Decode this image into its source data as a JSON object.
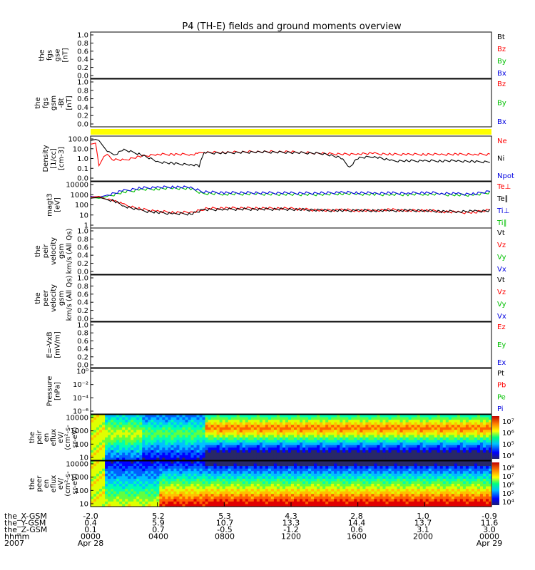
{
  "title": "P4 (TH-E) fields and ground moments overview",
  "colors": {
    "black": "#000000",
    "red": "#ff0000",
    "green": "#00c000",
    "blue": "#0000e0",
    "yellow": "#ffff00"
  },
  "chart_data": [
    {
      "id": "fgs-gse",
      "type": "line",
      "ylabel": [
        "the",
        "fgs",
        "gse",
        "[nT]"
      ],
      "yticks": [
        "1.0",
        "0.8",
        "0.6",
        "0.4",
        "0.2",
        "0.0"
      ],
      "legend": [
        {
          "label": "Bt",
          "color": "#000000"
        },
        {
          "label": "Bz",
          "color": "#ff0000"
        },
        {
          "label": "By",
          "color": "#00c000"
        },
        {
          "label": "Bx",
          "color": "#0000e0"
        }
      ],
      "series": []
    },
    {
      "id": "fgs-gsm",
      "type": "line",
      "ylabel": [
        "the",
        "fgs",
        "gsm",
        "-Bt",
        "[nT]"
      ],
      "yticks": [
        "1.0",
        "0.8",
        "0.6",
        "0.4",
        "0.2",
        "0.0"
      ],
      "legend": [
        {
          "label": "Bz",
          "color": "#ff0000"
        },
        {
          "label": "By",
          "color": "#00c000"
        },
        {
          "label": "Bx",
          "color": "#0000e0"
        }
      ],
      "series": []
    },
    {
      "id": "flag-bar",
      "type": "bar",
      "color": "#ffff00"
    },
    {
      "id": "density",
      "type": "line",
      "yscale": "log",
      "ylabel": [
        "Density",
        "[1/cc]",
        "[cm-3]"
      ],
      "yticks": [
        "100.0",
        "10.0",
        "1.0",
        "0.1",
        "0.0"
      ],
      "legend": [
        {
          "label": "Ne",
          "color": "#ff0000"
        },
        {
          "label": "Ni",
          "color": "#000000"
        },
        {
          "label": "Npot",
          "color": "#0000e0"
        }
      ],
      "series": [
        {
          "color": "#ff0000",
          "t": [
            0,
            0.3,
            0.5,
            0.8,
            1,
            1.3,
            2,
            3,
            4,
            5,
            6,
            6.5,
            6.8,
            7,
            8,
            10,
            12,
            14,
            15.5,
            16,
            17,
            18,
            19,
            20,
            21,
            22,
            23,
            24
          ],
          "v": [
            60,
            80,
            0.3,
            3,
            5,
            1.5,
            1.2,
            3,
            5,
            5,
            5,
            6,
            8,
            8,
            8,
            10,
            9,
            6,
            5,
            6,
            6,
            5,
            5,
            5,
            5,
            5,
            5,
            5
          ]
        },
        {
          "color": "#000000",
          "t": [
            0,
            0.3,
            0.5,
            1,
            1.5,
            2,
            3,
            4,
            5,
            6,
            6.5,
            6.8,
            7,
            8,
            10,
            12,
            14,
            15,
            15.5,
            16,
            17,
            18,
            19,
            20,
            21,
            22,
            23,
            24
          ],
          "v": [
            150,
            200,
            150,
            10,
            5,
            15,
            5,
            0.8,
            0.5,
            0.4,
            0.3,
            8,
            7,
            7,
            9,
            8,
            6,
            2,
            0.2,
            2,
            3,
            1,
            1,
            1,
            1,
            1,
            0.8,
            0.8
          ]
        }
      ]
    },
    {
      "id": "temperature",
      "type": "line",
      "yscale": "log",
      "ylabel": [
        "magt3",
        "[eV]"
      ],
      "yticks": [
        "10000",
        "1000",
        "100",
        "10",
        "1"
      ],
      "legend": [
        {
          "label": "Te⊥",
          "color": "#ff0000"
        },
        {
          "label": "Te∥",
          "color": "#000000"
        },
        {
          "label": "Ti⊥",
          "color": "#0000e0"
        },
        {
          "label": "Ti∥",
          "color": "#00c000"
        }
      ],
      "series": [
        {
          "color": "#00c000",
          "t": [
            0,
            0.5,
            1,
            2,
            3,
            4,
            5,
            6,
            6.8,
            7,
            8,
            10,
            12,
            14,
            15,
            16,
            17,
            18,
            19,
            20,
            21,
            22,
            23,
            24
          ],
          "v": [
            500,
            400,
            600,
            1500,
            2500,
            3000,
            3500,
            3000,
            1000,
            1100,
            1000,
            1000,
            900,
            900,
            1100,
            1000,
            900,
            900,
            900,
            1000,
            900,
            800,
            800,
            1500
          ]
        },
        {
          "color": "#0000e0",
          "t": [
            0,
            0.5,
            1,
            2,
            3,
            4,
            5,
            6,
            6.8,
            7,
            8,
            10,
            12,
            14,
            15,
            16,
            17,
            18,
            19,
            20,
            21,
            22,
            23,
            24
          ],
          "v": [
            600,
            500,
            800,
            2000,
            3500,
            4000,
            4500,
            4000,
            1500,
            1500,
            1300,
            1300,
            1200,
            1200,
            1400,
            1300,
            1200,
            1200,
            1200,
            1300,
            1200,
            1000,
            1000,
            2000
          ]
        },
        {
          "color": "#ff0000",
          "t": [
            0,
            0.5,
            1,
            1.5,
            2,
            3,
            4,
            5,
            6,
            6.8,
            7,
            8,
            10,
            12,
            14,
            15,
            16,
            17,
            18,
            19,
            20,
            21,
            22,
            23,
            24
          ],
          "v": [
            500,
            600,
            300,
            250,
            100,
            40,
            25,
            20,
            20,
            40,
            45,
            50,
            50,
            45,
            30,
            35,
            30,
            30,
            35,
            30,
            30,
            25,
            20,
            20,
            40
          ]
        },
        {
          "color": "#000000",
          "t": [
            0,
            0.5,
            1,
            1.5,
            2,
            3,
            4,
            5,
            6,
            6.8,
            7,
            8,
            10,
            12,
            14,
            15,
            16,
            17,
            18,
            19,
            20,
            21,
            22,
            23,
            24
          ],
          "v": [
            400,
            500,
            300,
            200,
            80,
            30,
            20,
            15,
            15,
            35,
            35,
            40,
            40,
            40,
            30,
            30,
            30,
            30,
            30,
            30,
            30,
            25,
            25,
            25,
            30
          ]
        }
      ]
    },
    {
      "id": "peir-velocity",
      "type": "line",
      "ylabel": [
        "the",
        "peir",
        "velocity",
        "gsm",
        "km/s (All Qs)"
      ],
      "yticks": [
        "1.0",
        "0.8",
        "0.6",
        "0.4",
        "0.2",
        "0.0"
      ],
      "legend": [
        {
          "label": "Vt",
          "color": "#000000"
        },
        {
          "label": "Vz",
          "color": "#ff0000"
        },
        {
          "label": "Vy",
          "color": "#00c000"
        },
        {
          "label": "Vx",
          "color": "#0000e0"
        }
      ],
      "series": []
    },
    {
      "id": "peer-velocity",
      "type": "line",
      "ylabel": [
        "the",
        "peer",
        "velocity",
        "gsm",
        "km/s (All Qs)"
      ],
      "yticks": [
        "1.0",
        "0.8",
        "0.6",
        "0.4",
        "0.2",
        "0.0"
      ],
      "legend": [
        {
          "label": "Vt",
          "color": "#000000"
        },
        {
          "label": "Vz",
          "color": "#ff0000"
        },
        {
          "label": "Vy",
          "color": "#00c000"
        },
        {
          "label": "Vx",
          "color": "#0000e0"
        }
      ],
      "series": []
    },
    {
      "id": "e-field",
      "type": "line",
      "ylabel": [
        "E=-VxB",
        "[mV/m]"
      ],
      "yticks": [
        "1.0",
        "0.8",
        "0.6",
        "0.4",
        "0.2",
        "0.0"
      ],
      "legend": [
        {
          "label": "Ez",
          "color": "#ff0000"
        },
        {
          "label": "Ey",
          "color": "#00c000"
        },
        {
          "label": "Ex",
          "color": "#0000e0"
        }
      ],
      "series": []
    },
    {
      "id": "pressure",
      "type": "line",
      "yscale": "log",
      "ylabel": [
        "Pressure",
        "[nPa]"
      ],
      "yticks": [
        "10⁰",
        "10⁻²",
        "10⁻⁴",
        "10⁻⁶"
      ],
      "legend": [
        {
          "label": "Pt",
          "color": "#000000"
        },
        {
          "label": "Pb",
          "color": "#ff0000"
        },
        {
          "label": "Pe",
          "color": "#00c000"
        },
        {
          "label": "Pi",
          "color": "#0000e0"
        }
      ],
      "series": []
    },
    {
      "id": "peir-eflux",
      "type": "heatmap",
      "ylabel": [
        "the",
        "peir",
        "en",
        "eflux",
        "eV/",
        "(cm²-s-",
        "sr-eV)"
      ],
      "yticks": [
        "10000",
        "1000",
        "100",
        "10"
      ],
      "colorbar_ticks": [
        "10⁷",
        "10⁶",
        "10⁵",
        "10⁴"
      ]
    },
    {
      "id": "peer-eflux",
      "type": "heatmap",
      "ylabel": [
        "the",
        "peer",
        "en",
        "eflux",
        "eV/",
        "(cm²-s-",
        "sr-eV)"
      ],
      "yticks": [
        "10000",
        "1000",
        "100",
        "10"
      ],
      "colorbar_ticks": [
        "10⁸",
        "10⁷",
        "10⁶",
        "10⁵",
        "10⁴"
      ]
    }
  ],
  "xaxis": {
    "rows": [
      {
        "label": "the_X-GSM",
        "values": [
          "-2.0",
          "5.2",
          "5.3",
          "4.3",
          "2.8",
          "1.0",
          "-0.9"
        ]
      },
      {
        "label": "the_Y-GSM",
        "values": [
          "0.4",
          "5.9",
          "10.7",
          "13.3",
          "14.4",
          "13.7",
          "11.6"
        ]
      },
      {
        "label": "the_Z-GSM",
        "values": [
          "0.1",
          "0.7",
          "-0.5",
          "-1.2",
          "0.6",
          "3.1",
          "3.0"
        ]
      },
      {
        "label": "hhmm",
        "values": [
          "0000",
          "0400",
          "0800",
          "1200",
          "1600",
          "2000",
          "0000"
        ]
      },
      {
        "label": "2007",
        "values": [
          "Apr 28",
          "",
          "",
          "",
          "",
          "",
          "Apr 29"
        ]
      }
    ]
  }
}
